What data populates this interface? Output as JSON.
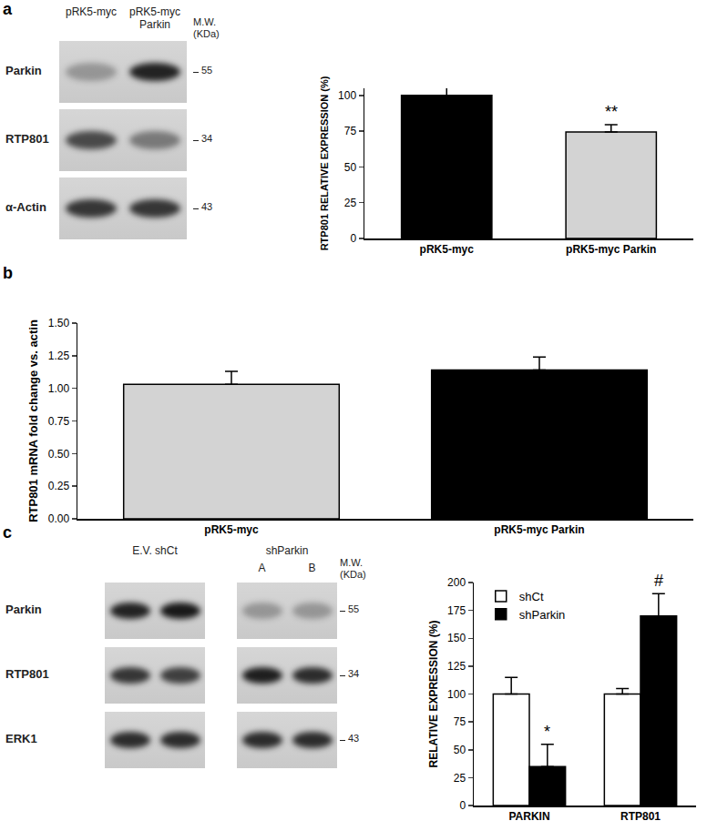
{
  "chart_data": [
    {
      "panel": "a",
      "type": "bar",
      "categories": [
        "pRK5-myc",
        "pRK5-myc Parkin"
      ],
      "values": [
        100,
        74.5
      ],
      "errors": [
        5.5,
        5
      ],
      "colors": [
        "#000000",
        "#d3d3d3"
      ],
      "ylabel": "RTP801 RELATIVE EXPRESSION (%)",
      "ylim": [
        0,
        105
      ],
      "yticks": [
        0,
        25,
        50,
        75,
        100
      ],
      "grid": false,
      "annotations": [
        {
          "category": "pRK5-myc Parkin",
          "text": "**"
        }
      ]
    },
    {
      "panel": "b",
      "type": "bar",
      "categories": [
        "pRK5-myc",
        "pRK5-myc Parkin"
      ],
      "values": [
        1.03,
        1.14
      ],
      "errors": [
        0.1,
        0.1
      ],
      "colors": [
        "#d3d3d3",
        "#000000"
      ],
      "ylabel": "RTP801 mRNA fold change vs. actin",
      "ylim": [
        0,
        1.5
      ],
      "yticks": [
        {
          "value": 0,
          "label": "0.00"
        },
        {
          "value": 0.25,
          "label": "0.25"
        },
        {
          "value": 0.5,
          "label": "0.50"
        },
        {
          "value": 0.75,
          "label": "0.75"
        },
        {
          "value": 1,
          "label": "1.00"
        },
        {
          "value": 1.25,
          "label": "1.25"
        },
        {
          "value": 1.5,
          "label": "1.50"
        }
      ],
      "grid": false
    },
    {
      "panel": "c",
      "type": "bar",
      "categories": [
        "PARKIN",
        "RTP801"
      ],
      "series": [
        {
          "name": "shCt",
          "color": "#ffffff",
          "values": [
            100,
            100
          ],
          "errors": [
            15,
            5
          ]
        },
        {
          "name": "shParkin",
          "color": "#000000",
          "values": [
            35,
            170
          ],
          "errors": [
            20,
            20
          ]
        }
      ],
      "ylabel": "RELATIVE EXPRESSION (%)",
      "ylim": [
        0,
        200
      ],
      "yticks": [
        0,
        25,
        50,
        75,
        100,
        125,
        150,
        175,
        200
      ],
      "grid": false,
      "legend": "top-left",
      "annotations": [
        {
          "category": "PARKIN",
          "series": "shParkin",
          "text": "*"
        },
        {
          "category": "RTP801",
          "series": "shParkin",
          "text": "#"
        }
      ]
    }
  ],
  "blots": [
    {
      "mw_label": "M.W. (KDa)",
      "groups": [
        {
          "label": "pRK5-myc"
        },
        {
          "label": "pRK5-myc Parkin"
        }
      ],
      "rows": [
        {
          "name": "Parkin",
          "mw": "55",
          "bands": [
            [
              0.3
            ],
            [
              0.9
            ]
          ]
        },
        {
          "name": "RTP801",
          "mw": "34",
          "bands": [
            [
              0.7
            ],
            [
              0.45
            ]
          ]
        },
        {
          "name": "α-Actin",
          "mw": "43",
          "bands": [
            [
              0.8
            ],
            [
              0.8
            ]
          ]
        }
      ]
    },
    {
      "mw_label": "M.W. (KDa)",
      "groups": [
        {
          "label": "E.V. shCt"
        },
        {
          "label": "shParkin",
          "sublabels": [
            "A",
            "B"
          ]
        }
      ],
      "rows": [
        {
          "name": "Parkin",
          "mw": "55",
          "bands": [
            [
              0.9,
              0.95
            ],
            [
              0.3,
              0.3
            ]
          ]
        },
        {
          "name": "RTP801",
          "mw": "34",
          "bands": [
            [
              0.8,
              0.75
            ],
            [
              0.92,
              0.85
            ]
          ]
        },
        {
          "name": "ERK1",
          "mw": "43",
          "bands": [
            [
              0.85,
              0.85
            ],
            [
              0.85,
              0.85
            ]
          ]
        }
      ]
    }
  ]
}
